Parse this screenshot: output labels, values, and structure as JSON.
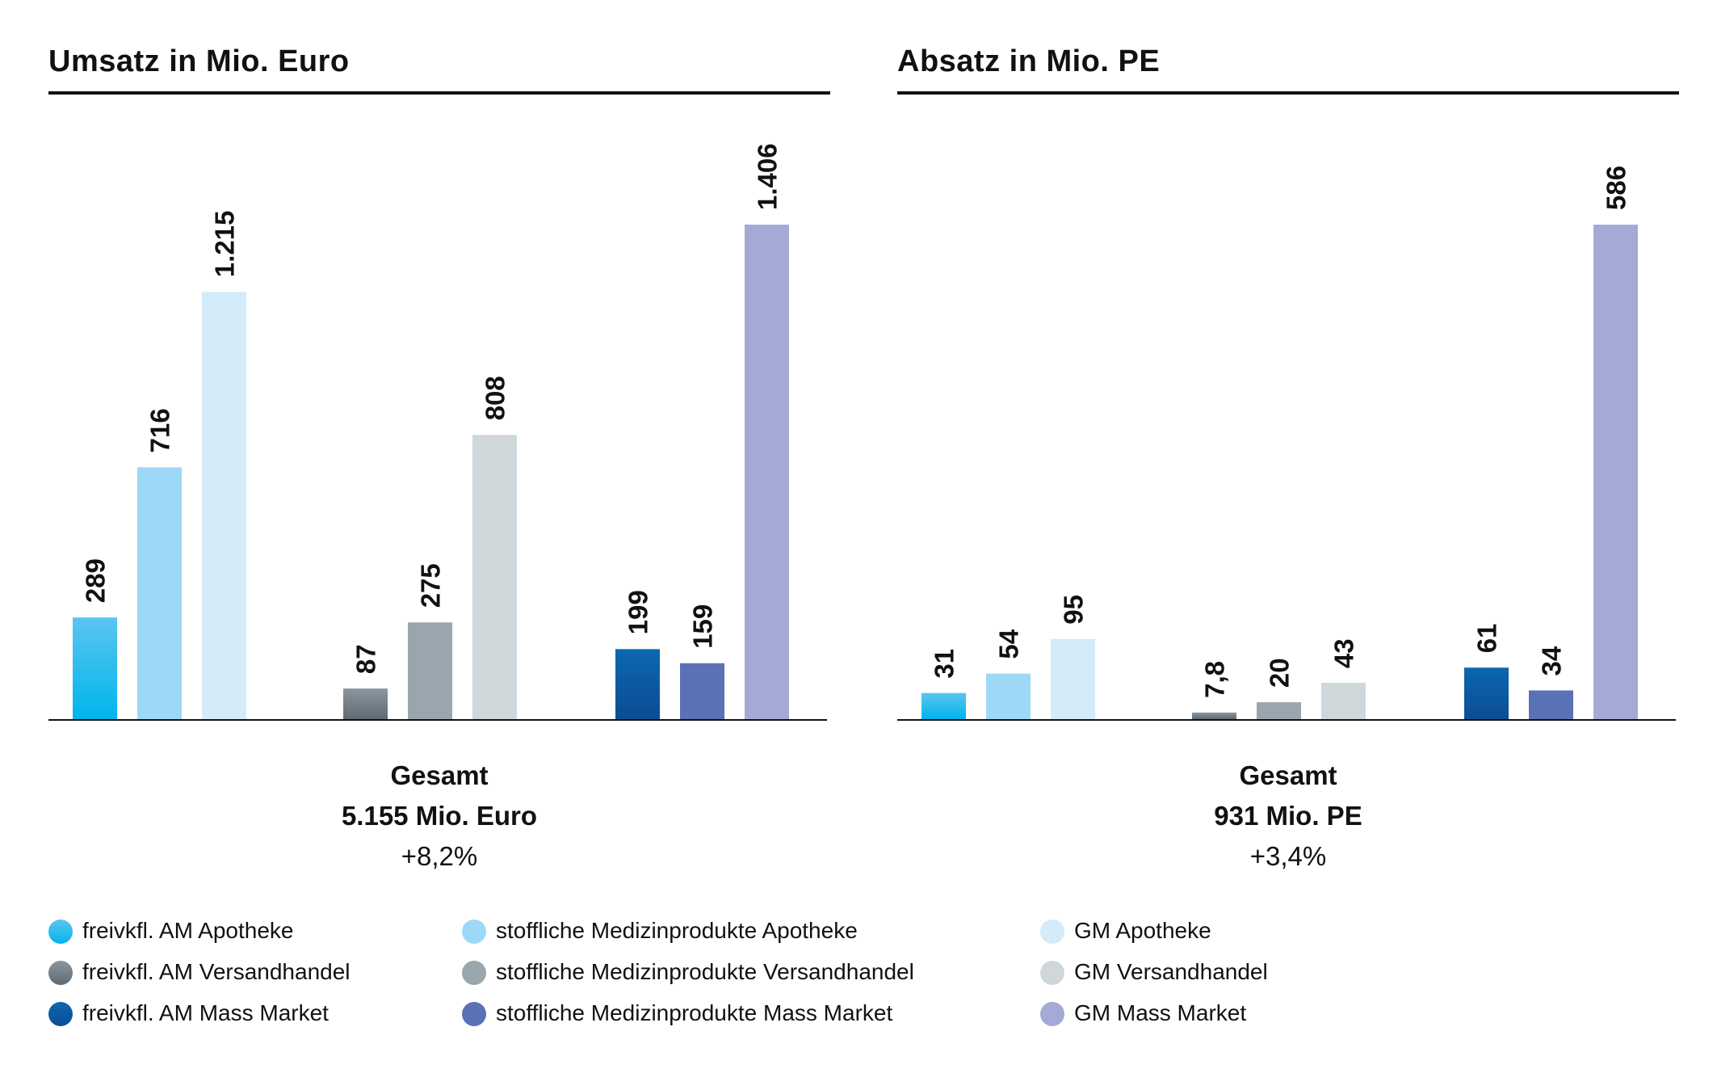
{
  "colors": {
    "freivkfl_apotheke_top": "#5bc5f0",
    "freivkfl_apotheke_bottom": "#00b5ec",
    "stoffliche_apotheke": "#9dd9f7",
    "gm_apotheke": "#d4ebf9",
    "freivkfl_versand_top": "#8c969e",
    "freivkfl_versand_bottom": "#5f6a72",
    "stoffliche_versand": "#99a6ae",
    "gm_versand": "#cfd7db",
    "freivkfl_mass_top": "#0c67b0",
    "freivkfl_mass_bottom": "#0b4d93",
    "stoffliche_mass": "#5b71b5",
    "gm_mass": "#a3aad5"
  },
  "chart_data": [
    {
      "type": "bar",
      "title": "Umsatz in Mio. Euro",
      "groups": [
        {
          "bars": [
            {
              "value": 289,
              "label": "289",
              "legend_index": 0
            },
            {
              "value": 716,
              "label": "716",
              "legend_index": 1
            },
            {
              "value": 1215,
              "label": "1.215",
              "legend_index": 2
            }
          ]
        },
        {
          "bars": [
            {
              "value": 87,
              "label": "87",
              "legend_index": 3
            },
            {
              "value": 275,
              "label": "275",
              "legend_index": 4
            },
            {
              "value": 808,
              "label": "808",
              "legend_index": 5
            }
          ]
        },
        {
          "bars": [
            {
              "value": 199,
              "label": "199",
              "legend_index": 6
            },
            {
              "value": 159,
              "label": "159",
              "legend_index": 7
            },
            {
              "value": 1406,
              "label": "1.406",
              "legend_index": 8
            }
          ]
        }
      ],
      "ylim": [
        0,
        1406
      ],
      "summary": {
        "label": "Gesamt",
        "total": "5.155 Mio. Euro",
        "change": "+8,2%"
      }
    },
    {
      "type": "bar",
      "title": "Absatz in Mio. PE",
      "groups": [
        {
          "bars": [
            {
              "value": 31,
              "label": "31",
              "legend_index": 0
            },
            {
              "value": 54,
              "label": "54",
              "legend_index": 1
            },
            {
              "value": 95,
              "label": "95",
              "legend_index": 2
            }
          ]
        },
        {
          "bars": [
            {
              "value": 7.8,
              "label": "7,8",
              "legend_index": 3
            },
            {
              "value": 20,
              "label": "20",
              "legend_index": 4
            },
            {
              "value": 43,
              "label": "43",
              "legend_index": 5
            }
          ]
        },
        {
          "bars": [
            {
              "value": 61,
              "label": "61",
              "legend_index": 6
            },
            {
              "value": 34,
              "label": "34",
              "legend_index": 7
            },
            {
              "value": 586,
              "label": "586",
              "legend_index": 8
            }
          ]
        }
      ],
      "ylim": [
        0,
        586
      ],
      "summary": {
        "label": "Gesamt",
        "total": "931 Mio. PE",
        "change": "+3,4%"
      }
    }
  ],
  "legend": [
    {
      "label": "freivkfl. AM Apotheke",
      "color": "#00b5ec"
    },
    {
      "label": "stoffliche Medizinprodukte Apotheke",
      "color": "#9dd9f7"
    },
    {
      "label": "GM Apotheke",
      "color": "#d4ebf9"
    },
    {
      "label": "freivkfl. AM Versandhandel",
      "color": "#717c84"
    },
    {
      "label": "stoffliche Medizinprodukte Versandhandel",
      "color": "#99a6ae"
    },
    {
      "label": "GM Versandhandel",
      "color": "#cfd7db"
    },
    {
      "label": "freivkfl. AM Mass Market",
      "color": "#0b5a9f"
    },
    {
      "label": "stoffliche Medizinprodukte Mass Market",
      "color": "#5b71b5"
    },
    {
      "label": "GM Mass Market",
      "color": "#a3aad5"
    }
  ]
}
